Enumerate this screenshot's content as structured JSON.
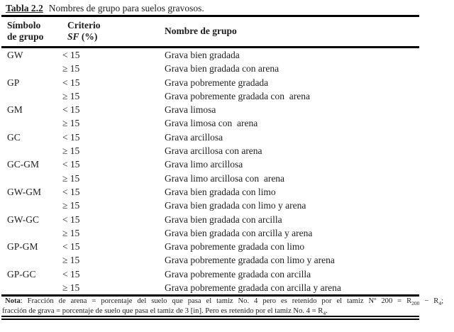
{
  "title": {
    "label": "Tabla 2.2",
    "text": "Nombres de grupo para suelos gravosos."
  },
  "header": {
    "col1_line1": "Símbolo",
    "col1_line2": "de grupo",
    "col2_line1": "Criterio",
    "col2_line2_var": "SF",
    "col2_line2_unit": " (%)",
    "col3": "Nombre de grupo"
  },
  "rows": [
    {
      "symbol": "GW",
      "criterion": "< 15",
      "name": "Grava bien gradada"
    },
    {
      "symbol": "",
      "criterion": "≥ 15",
      "name": "Grava bien gradada con arena"
    },
    {
      "symbol": "GP",
      "criterion": "< 15",
      "name": "Grava pobremente gradada"
    },
    {
      "symbol": "",
      "criterion": "≥ 15",
      "name": "Grava pobremente gradada con  arena"
    },
    {
      "symbol": "GM",
      "criterion": "< 15",
      "name": "Grava limosa"
    },
    {
      "symbol": "",
      "criterion": "≥ 15",
      "name": "Grava limosa con  arena"
    },
    {
      "symbol": "GC",
      "criterion": "< 15",
      "name": "Grava arcillosa"
    },
    {
      "symbol": "",
      "criterion": "≥ 15",
      "name": "Grava arcillosa con arena"
    },
    {
      "symbol": "GC-GM",
      "criterion": "< 15",
      "name": "Grava limo arcillosa"
    },
    {
      "symbol": "",
      "criterion": "≥ 15",
      "name": "Grava limo arcillosa con  arena"
    },
    {
      "symbol": "GW-GM",
      "criterion": "< 15",
      "name": "Grava bien gradada con limo"
    },
    {
      "symbol": "",
      "criterion": "≥ 15",
      "name": "Grava bien gradada con limo y arena"
    },
    {
      "symbol": "GW-GC",
      "criterion": "< 15",
      "name": "Grava bien gradada con arcilla"
    },
    {
      "symbol": "",
      "criterion": "≥ 15",
      "name": "Grava bien gradada con arcilla y arena"
    },
    {
      "symbol": "GP-GM",
      "criterion": "< 15",
      "name": "Grava pobremente gradada con limo"
    },
    {
      "symbol": "",
      "criterion": "≥ 15",
      "name": "Grava pobremente gradada con limo y arena"
    },
    {
      "symbol": "GP-GC",
      "criterion": "< 15",
      "name": "Grava pobremente gradada con arcilla"
    },
    {
      "symbol": "",
      "criterion": "≥ 15",
      "name": "Grava pobremente gradada con arcilla y arena"
    }
  ],
  "note": {
    "label": "Nota",
    "line1_text": ": Fracción de arena = porcentaje del suelo que pasa el tamiz No. 4 pero es retenido por el tamiz Nº 200 = R",
    "line1_sub1": "200",
    "line1_mid": " − R",
    "line1_sub2": "4",
    "line1_tail": ";",
    "line2_text": "fracción de grava = porcentaje de suelo que pasa el tamiz de 3 [in]. Pero es retenido por el tamiz No. 4 = R",
    "line2_sub": "4",
    "line2_tail": "."
  },
  "colors": {
    "text": "#1d1d1d",
    "rule": "#000000",
    "background": "#ffffff"
  }
}
